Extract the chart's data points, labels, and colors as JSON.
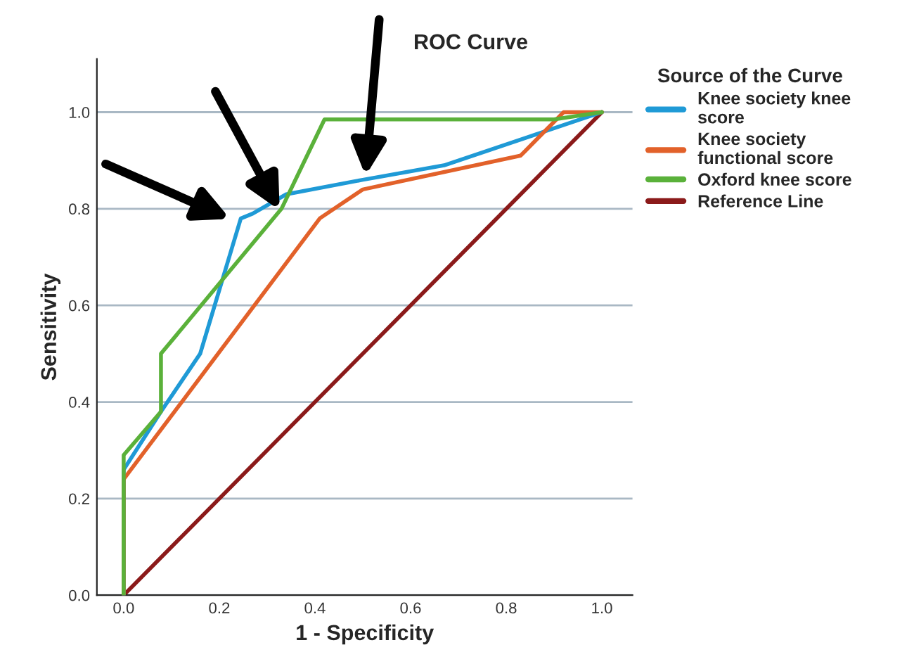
{
  "chart_data": {
    "type": "line",
    "title": "ROC Curve",
    "xlabel": "1 - Specificity",
    "ylabel": "Sensitivity",
    "legend_title": "Source of the Curve",
    "xlim": [
      -0.056,
      1.064
    ],
    "ylim": [
      0,
      1.11
    ],
    "xticks": [
      {
        "value": 0,
        "label": "0.0"
      },
      {
        "value": 0.2,
        "label": "0.2"
      },
      {
        "value": 0.4,
        "label": "0.4"
      },
      {
        "value": 0.6,
        "label": "0.6"
      },
      {
        "value": 0.8,
        "label": "0.8"
      },
      {
        "value": 1,
        "label": "1.0"
      }
    ],
    "yticks": [
      {
        "value": 0,
        "label": "0.0"
      },
      {
        "value": 0.2,
        "label": "0.2"
      },
      {
        "value": 0.4,
        "label": "0.4"
      },
      {
        "value": 0.6,
        "label": "0.6"
      },
      {
        "value": 0.8,
        "label": "0.8"
      },
      {
        "value": 1,
        "label": "1.0"
      }
    ],
    "grid": "y",
    "legend": "right",
    "marker": "none",
    "line_style": "solid",
    "series": [
      {
        "name": "Knee society knee score",
        "color": "#1f9ad6",
        "x": [
          0,
          0,
          0.078,
          0.16,
          0.245,
          0.27,
          0.34,
          0.5,
          0.67,
          0.85,
          1
        ],
        "values": [
          0,
          0.26,
          0.38,
          0.5,
          0.78,
          0.79,
          0.83,
          0.86,
          0.89,
          0.95,
          1
        ]
      },
      {
        "name": "Knee society functional score",
        "color": "#e2612a",
        "x": [
          0,
          0,
          0.41,
          0.5,
          0.83,
          0.84,
          0.92,
          1
        ],
        "values": [
          0,
          0.24,
          0.78,
          0.84,
          0.91,
          0.92,
          1,
          1
        ]
      },
      {
        "name": "Oxford knee score",
        "color": "#5ab13a",
        "x": [
          0,
          0,
          0.078,
          0.078,
          0.33,
          0.42,
          0.9,
          1
        ],
        "values": [
          0,
          0.29,
          0.38,
          0.5,
          0.8,
          0.985,
          0.985,
          1
        ]
      },
      {
        "name": "Reference Line",
        "color": "#8b1a1a",
        "x": [
          0,
          1
        ],
        "values": [
          0,
          1
        ]
      }
    ]
  }
}
